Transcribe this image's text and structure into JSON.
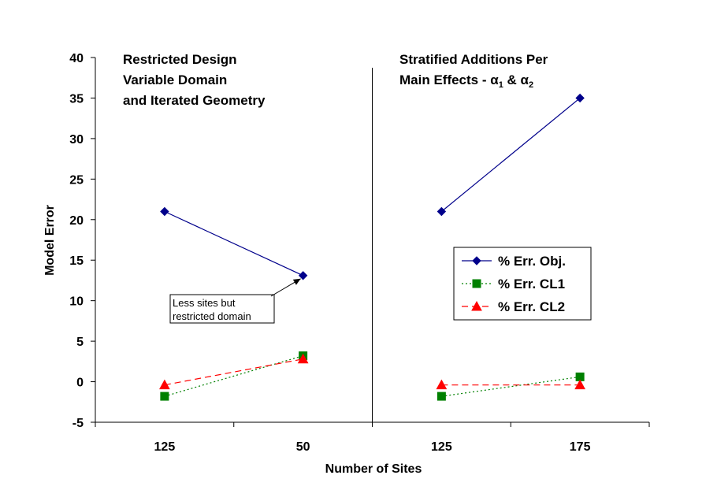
{
  "chart_data": {
    "type": "line",
    "xlabel": "Number of Sites",
    "ylabel": "Model Error",
    "ylim": [
      -5,
      40
    ],
    "yticks": [
      -5,
      0,
      5,
      10,
      15,
      20,
      25,
      30,
      35,
      40
    ],
    "categories": [
      "125",
      "50",
      "125",
      "175"
    ],
    "grid": false,
    "legend_position": "right",
    "sections": [
      {
        "title_lines": [
          "Restricted Design",
          "Variable Domain",
          "and Iterated Geometry"
        ],
        "category_indices": [
          0,
          1
        ]
      },
      {
        "title_lines": [
          "Stratified Additions Per",
          "Main Effects - α",
          "1",
          " & α",
          "2"
        ],
        "category_indices": [
          2,
          3
        ]
      }
    ],
    "series": [
      {
        "name": "% Err. Obj.",
        "color": "#00008b",
        "marker": "diamond",
        "line_style": "solid",
        "segments": [
          {
            "category_indices": [
              0,
              1
            ],
            "values": [
              21,
              13.1
            ]
          },
          {
            "category_indices": [
              2,
              3
            ],
            "values": [
              21,
              35
            ]
          }
        ]
      },
      {
        "name": "% Err. CL1",
        "color": "#008000",
        "marker": "square",
        "line_style": "dotted",
        "segments": [
          {
            "category_indices": [
              0,
              1
            ],
            "values": [
              -1.8,
              3.2
            ]
          },
          {
            "category_indices": [
              2,
              3
            ],
            "values": [
              -1.8,
              0.6
            ]
          }
        ]
      },
      {
        "name": "% Err. CL2",
        "color": "#ff0000",
        "marker": "triangle",
        "line_style": "dashed",
        "segments": [
          {
            "category_indices": [
              0,
              1
            ],
            "values": [
              -0.4,
              2.8
            ]
          },
          {
            "category_indices": [
              2,
              3
            ],
            "values": [
              -0.4,
              -0.4
            ]
          }
        ]
      }
    ],
    "annotation": {
      "lines": [
        "Less sites but",
        "restricted domain"
      ],
      "points_to": {
        "category_index": 1,
        "value": 13.1
      }
    }
  }
}
